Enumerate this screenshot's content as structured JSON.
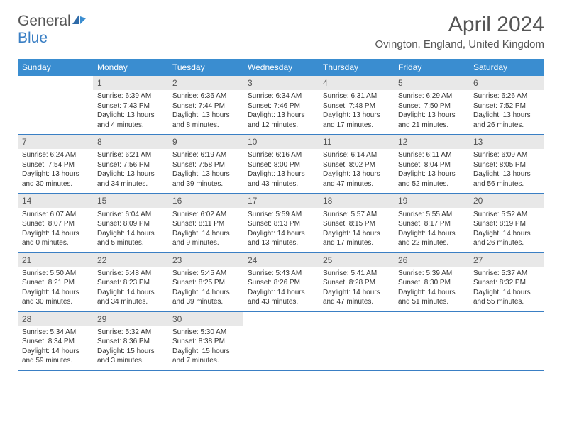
{
  "logo": {
    "text1": "General",
    "text2": "Blue"
  },
  "colors": {
    "header_bg": "#3a8dd0",
    "accent": "#3a7fc4",
    "daynum_bg": "#e8e8e8",
    "text": "#555"
  },
  "title": "April 2024",
  "location": "Ovington, England, United Kingdom",
  "dow": [
    "Sunday",
    "Monday",
    "Tuesday",
    "Wednesday",
    "Thursday",
    "Friday",
    "Saturday"
  ],
  "weeks": [
    [
      {
        "n": "",
        "l": []
      },
      {
        "n": "1",
        "l": [
          "Sunrise: 6:39 AM",
          "Sunset: 7:43 PM",
          "Daylight: 13 hours and 4 minutes."
        ]
      },
      {
        "n": "2",
        "l": [
          "Sunrise: 6:36 AM",
          "Sunset: 7:44 PM",
          "Daylight: 13 hours and 8 minutes."
        ]
      },
      {
        "n": "3",
        "l": [
          "Sunrise: 6:34 AM",
          "Sunset: 7:46 PM",
          "Daylight: 13 hours and 12 minutes."
        ]
      },
      {
        "n": "4",
        "l": [
          "Sunrise: 6:31 AM",
          "Sunset: 7:48 PM",
          "Daylight: 13 hours and 17 minutes."
        ]
      },
      {
        "n": "5",
        "l": [
          "Sunrise: 6:29 AM",
          "Sunset: 7:50 PM",
          "Daylight: 13 hours and 21 minutes."
        ]
      },
      {
        "n": "6",
        "l": [
          "Sunrise: 6:26 AM",
          "Sunset: 7:52 PM",
          "Daylight: 13 hours and 26 minutes."
        ]
      }
    ],
    [
      {
        "n": "7",
        "l": [
          "Sunrise: 6:24 AM",
          "Sunset: 7:54 PM",
          "Daylight: 13 hours and 30 minutes."
        ]
      },
      {
        "n": "8",
        "l": [
          "Sunrise: 6:21 AM",
          "Sunset: 7:56 PM",
          "Daylight: 13 hours and 34 minutes."
        ]
      },
      {
        "n": "9",
        "l": [
          "Sunrise: 6:19 AM",
          "Sunset: 7:58 PM",
          "Daylight: 13 hours and 39 minutes."
        ]
      },
      {
        "n": "10",
        "l": [
          "Sunrise: 6:16 AM",
          "Sunset: 8:00 PM",
          "Daylight: 13 hours and 43 minutes."
        ]
      },
      {
        "n": "11",
        "l": [
          "Sunrise: 6:14 AM",
          "Sunset: 8:02 PM",
          "Daylight: 13 hours and 47 minutes."
        ]
      },
      {
        "n": "12",
        "l": [
          "Sunrise: 6:11 AM",
          "Sunset: 8:04 PM",
          "Daylight: 13 hours and 52 minutes."
        ]
      },
      {
        "n": "13",
        "l": [
          "Sunrise: 6:09 AM",
          "Sunset: 8:05 PM",
          "Daylight: 13 hours and 56 minutes."
        ]
      }
    ],
    [
      {
        "n": "14",
        "l": [
          "Sunrise: 6:07 AM",
          "Sunset: 8:07 PM",
          "Daylight: 14 hours and 0 minutes."
        ]
      },
      {
        "n": "15",
        "l": [
          "Sunrise: 6:04 AM",
          "Sunset: 8:09 PM",
          "Daylight: 14 hours and 5 minutes."
        ]
      },
      {
        "n": "16",
        "l": [
          "Sunrise: 6:02 AM",
          "Sunset: 8:11 PM",
          "Daylight: 14 hours and 9 minutes."
        ]
      },
      {
        "n": "17",
        "l": [
          "Sunrise: 5:59 AM",
          "Sunset: 8:13 PM",
          "Daylight: 14 hours and 13 minutes."
        ]
      },
      {
        "n": "18",
        "l": [
          "Sunrise: 5:57 AM",
          "Sunset: 8:15 PM",
          "Daylight: 14 hours and 17 minutes."
        ]
      },
      {
        "n": "19",
        "l": [
          "Sunrise: 5:55 AM",
          "Sunset: 8:17 PM",
          "Daylight: 14 hours and 22 minutes."
        ]
      },
      {
        "n": "20",
        "l": [
          "Sunrise: 5:52 AM",
          "Sunset: 8:19 PM",
          "Daylight: 14 hours and 26 minutes."
        ]
      }
    ],
    [
      {
        "n": "21",
        "l": [
          "Sunrise: 5:50 AM",
          "Sunset: 8:21 PM",
          "Daylight: 14 hours and 30 minutes."
        ]
      },
      {
        "n": "22",
        "l": [
          "Sunrise: 5:48 AM",
          "Sunset: 8:23 PM",
          "Daylight: 14 hours and 34 minutes."
        ]
      },
      {
        "n": "23",
        "l": [
          "Sunrise: 5:45 AM",
          "Sunset: 8:25 PM",
          "Daylight: 14 hours and 39 minutes."
        ]
      },
      {
        "n": "24",
        "l": [
          "Sunrise: 5:43 AM",
          "Sunset: 8:26 PM",
          "Daylight: 14 hours and 43 minutes."
        ]
      },
      {
        "n": "25",
        "l": [
          "Sunrise: 5:41 AM",
          "Sunset: 8:28 PM",
          "Daylight: 14 hours and 47 minutes."
        ]
      },
      {
        "n": "26",
        "l": [
          "Sunrise: 5:39 AM",
          "Sunset: 8:30 PM",
          "Daylight: 14 hours and 51 minutes."
        ]
      },
      {
        "n": "27",
        "l": [
          "Sunrise: 5:37 AM",
          "Sunset: 8:32 PM",
          "Daylight: 14 hours and 55 minutes."
        ]
      }
    ],
    [
      {
        "n": "28",
        "l": [
          "Sunrise: 5:34 AM",
          "Sunset: 8:34 PM",
          "Daylight: 14 hours and 59 minutes."
        ]
      },
      {
        "n": "29",
        "l": [
          "Sunrise: 5:32 AM",
          "Sunset: 8:36 PM",
          "Daylight: 15 hours and 3 minutes."
        ]
      },
      {
        "n": "30",
        "l": [
          "Sunrise: 5:30 AM",
          "Sunset: 8:38 PM",
          "Daylight: 15 hours and 7 minutes."
        ]
      },
      {
        "n": "",
        "l": []
      },
      {
        "n": "",
        "l": []
      },
      {
        "n": "",
        "l": []
      },
      {
        "n": "",
        "l": []
      }
    ]
  ]
}
